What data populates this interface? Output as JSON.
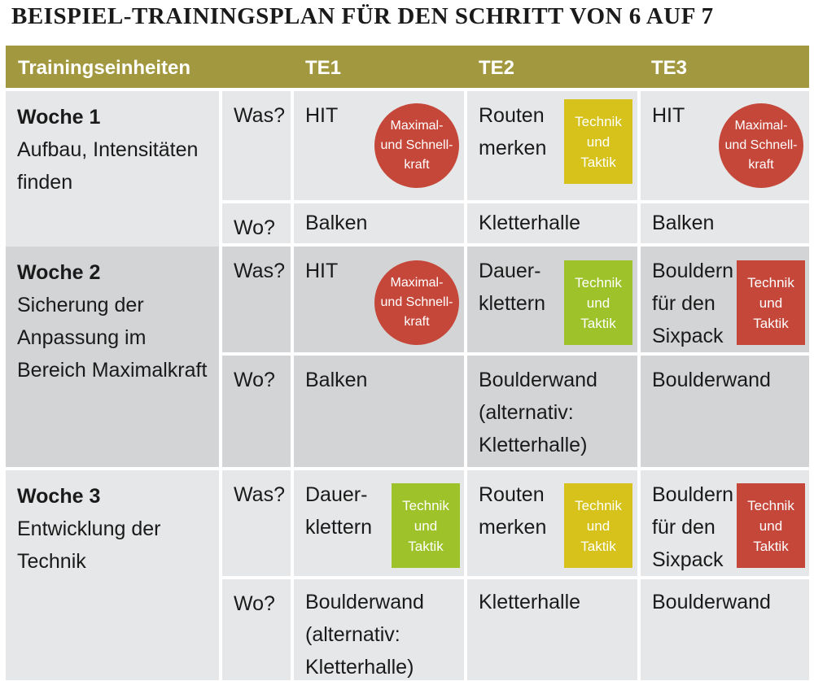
{
  "title": "BEISPIEL-TRAININGSPLAN FÜR DEN SCHRITT VON 6 AUF 7",
  "header": {
    "col0": "Trainingseinheiten",
    "te1": "TE1",
    "te2": "TE2",
    "te3": "TE3"
  },
  "labels": {
    "was": "Was?",
    "wo": "Wo?"
  },
  "colors": {
    "header": "#a2983f",
    "cell_light": "#e6e7e8",
    "cell_dark": "#d3d4d5",
    "badge_red": "#c4473a",
    "badge_green": "#9ec22a",
    "badge_yellow": "#d6c21a"
  },
  "weeks": [
    {
      "title": "Woche 1",
      "desc": "Aufbau, Intensitäten finden",
      "te1": {
        "was": "HIT",
        "badge": "Maximal-\nund Schnell-\nkraft",
        "badge_color": "red",
        "wo": "Balken"
      },
      "te2": {
        "was": "Routen\nmerken",
        "badge": "Technik\nund\nTaktik",
        "badge_color": "yellow",
        "wo": "Kletterhalle"
      },
      "te3": {
        "was": "HIT",
        "badge": "Maximal-\nund Schnell-\nkraft",
        "badge_color": "red",
        "wo": "Balken"
      }
    },
    {
      "title": "Woche 2",
      "desc": "Sicherung der Anpassung im Bereich Maximalkraft",
      "te1": {
        "was": "HIT",
        "badge": "Maximal-\nund Schnell-\nkraft",
        "badge_color": "red",
        "wo": "Balken"
      },
      "te2": {
        "was": "Dauer-\nklettern",
        "badge": "Technik\nund\nTaktik",
        "badge_color": "green",
        "wo": "Boulderwand\n(alternativ:\nKletterhalle)"
      },
      "te3": {
        "was": "Bouldern\nfür den\nSixpack",
        "badge": "Technik\nund\nTaktik",
        "badge_color": "red",
        "wo": "Boulderwand"
      }
    },
    {
      "title": "Woche 3",
      "desc": "Entwicklung der Technik",
      "te1": {
        "was": "Dauer-\nklettern",
        "badge": "Technik\nund\nTaktik",
        "badge_color": "green",
        "wo": "Boulderwand\n(alternativ:\nKletterhalle)"
      },
      "te2": {
        "was": "Routen\nmerken",
        "badge": "Technik\nund\nTaktik",
        "badge_color": "yellow",
        "wo": "Kletterhalle"
      },
      "te3": {
        "was": "Bouldern\nfür den\nSixpack",
        "badge": "Technik\nund\nTaktik",
        "badge_color": "red",
        "wo": "Boulderwand"
      }
    }
  ]
}
